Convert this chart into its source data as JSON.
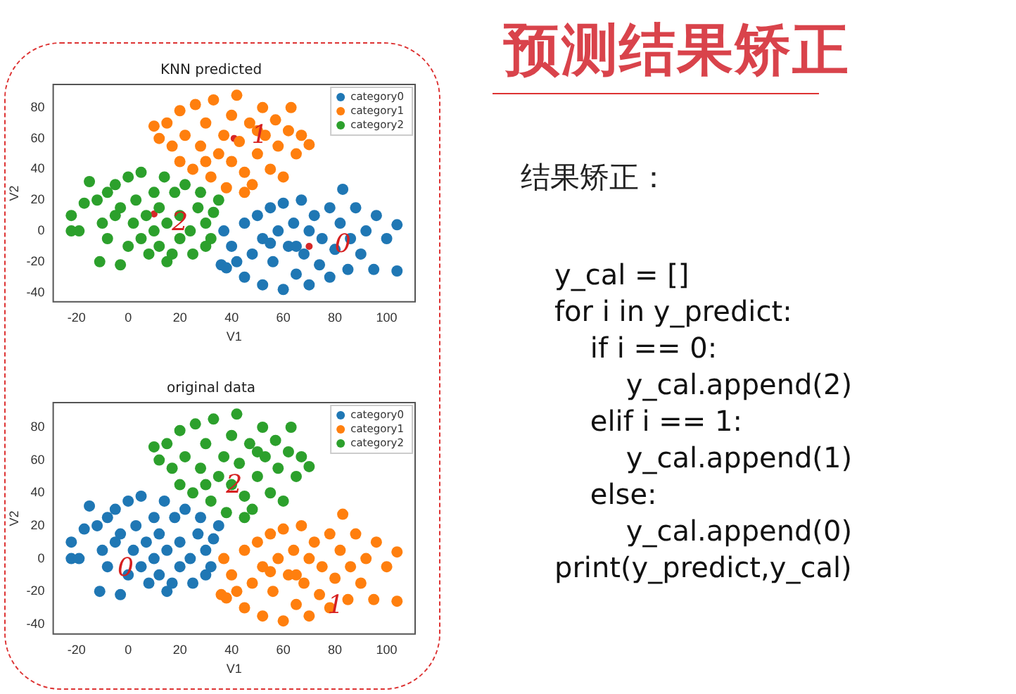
{
  "chart_data": [
    {
      "type": "scatter",
      "title": "KNN predicted",
      "xlabel": "V1",
      "ylabel": "V2",
      "xlim": [
        -29,
        111
      ],
      "ylim": [
        -46,
        95
      ],
      "xticks": [
        -20,
        0,
        20,
        40,
        60,
        80,
        100
      ],
      "yticks": [
        -40,
        -20,
        0,
        20,
        40,
        60,
        80
      ],
      "grid": false,
      "legend": "top right",
      "marker": "circle",
      "series": [
        {
          "name": "category0",
          "color": "#1f77b4",
          "x": [
            36,
            37,
            38,
            40,
            42,
            45,
            45,
            48,
            50,
            52,
            52,
            55,
            56,
            58,
            60,
            60,
            62,
            64,
            65,
            67,
            68,
            70,
            70,
            72,
            74,
            75,
            78,
            78,
            80,
            82,
            83,
            85,
            86,
            88,
            90,
            92,
            95,
            96,
            100,
            104,
            104,
            65,
            55
          ],
          "values": [
            -22,
            0,
            -24,
            -10,
            -20,
            5,
            -30,
            -15,
            10,
            -5,
            -35,
            15,
            -20,
            0,
            -38,
            18,
            -10,
            5,
            -28,
            20,
            -15,
            -35,
            0,
            10,
            -22,
            -5,
            15,
            -30,
            -12,
            5,
            27,
            -25,
            -5,
            15,
            -15,
            0,
            -25,
            10,
            -5,
            4,
            -26,
            -10,
            -8
          ]
        },
        {
          "name": "category1",
          "color": "#ff7f0e",
          "x": [
            10,
            12,
            15,
            17,
            20,
            20,
            22,
            25,
            26,
            28,
            30,
            32,
            33,
            35,
            37,
            38,
            40,
            40,
            42,
            43,
            45,
            47,
            48,
            50,
            52,
            53,
            55,
            57,
            58,
            60,
            62,
            63,
            65,
            67,
            70,
            45,
            30,
            50
          ],
          "values": [
            68,
            60,
            70,
            55,
            78,
            45,
            62,
            40,
            82,
            55,
            70,
            35,
            85,
            50,
            62,
            28,
            75,
            45,
            88,
            58,
            38,
            70,
            30,
            50,
            80,
            62,
            40,
            72,
            55,
            35,
            65,
            80,
            50,
            62,
            56,
            25,
            45,
            65
          ]
        },
        {
          "name": "category2",
          "color": "#2ca02c",
          "x": [
            -22,
            -22,
            -19,
            -17,
            -15,
            -12,
            -11,
            -10,
            -8,
            -8,
            -5,
            -3,
            -3,
            0,
            0,
            2,
            3,
            5,
            5,
            7,
            8,
            10,
            10,
            12,
            12,
            14,
            15,
            17,
            18,
            20,
            20,
            22,
            24,
            25,
            27,
            28,
            30,
            32,
            33,
            35,
            30,
            -5,
            15
          ],
          "values": [
            10,
            0,
            0,
            18,
            32,
            20,
            -20,
            5,
            -5,
            25,
            30,
            -22,
            15,
            -10,
            35,
            5,
            20,
            -5,
            38,
            10,
            -15,
            25,
            0,
            -10,
            15,
            35,
            5,
            -15,
            25,
            -5,
            10,
            30,
            0,
            -15,
            15,
            25,
            5,
            -5,
            12,
            20,
            -10,
            10,
            -20
          ]
        },
        {
          "color": "#d62728",
          "x": [
            41,
            10,
            70
          ],
          "values": [
            60,
            11,
            -10
          ]
        }
      ],
      "annotations": [
        "1",
        "2",
        "0"
      ]
    },
    {
      "type": "scatter",
      "title": "original data",
      "xlabel": "V1",
      "ylabel": "V2",
      "xlim": [
        -29,
        111
      ],
      "ylim": [
        -46,
        95
      ],
      "xticks": [
        -20,
        0,
        20,
        40,
        60,
        80,
        100
      ],
      "yticks": [
        -40,
        -20,
        0,
        20,
        40,
        60,
        80
      ],
      "grid": false,
      "legend": "top right",
      "marker": "circle",
      "series": [
        {
          "name": "category0",
          "color": "#1f77b4",
          "x": [
            -22,
            -22,
            -19,
            -17,
            -15,
            -12,
            -11,
            -10,
            -8,
            -8,
            -5,
            -3,
            -3,
            0,
            0,
            2,
            3,
            5,
            5,
            7,
            8,
            10,
            10,
            12,
            12,
            14,
            15,
            17,
            18,
            20,
            20,
            22,
            24,
            25,
            27,
            28,
            30,
            32,
            33,
            35,
            30,
            -5,
            15
          ],
          "values": [
            10,
            0,
            0,
            18,
            32,
            20,
            -20,
            5,
            -5,
            25,
            30,
            -22,
            15,
            -10,
            35,
            5,
            20,
            -5,
            38,
            10,
            -15,
            25,
            0,
            -10,
            15,
            35,
            5,
            -15,
            25,
            -5,
            10,
            30,
            0,
            -15,
            15,
            25,
            5,
            -5,
            12,
            20,
            -10,
            10,
            -20
          ]
        },
        {
          "name": "category1",
          "color": "#ff7f0e",
          "x": [
            36,
            37,
            38,
            40,
            42,
            45,
            45,
            48,
            50,
            52,
            52,
            55,
            56,
            58,
            60,
            60,
            62,
            64,
            65,
            67,
            68,
            70,
            70,
            72,
            74,
            75,
            78,
            78,
            80,
            82,
            83,
            85,
            86,
            88,
            90,
            92,
            95,
            96,
            100,
            104,
            104,
            65,
            55
          ],
          "values": [
            -22,
            0,
            -24,
            -10,
            -20,
            5,
            -30,
            -15,
            10,
            -5,
            -35,
            15,
            -20,
            0,
            -38,
            18,
            -10,
            5,
            -28,
            20,
            -15,
            -35,
            0,
            10,
            -22,
            -5,
            15,
            -30,
            -12,
            5,
            27,
            -25,
            -5,
            15,
            -15,
            0,
            -25,
            10,
            -5,
            4,
            -26,
            -10,
            -8
          ]
        },
        {
          "name": "category2",
          "color": "#2ca02c",
          "x": [
            10,
            12,
            15,
            17,
            20,
            20,
            22,
            25,
            26,
            28,
            30,
            32,
            33,
            35,
            37,
            38,
            40,
            40,
            42,
            43,
            45,
            47,
            48,
            50,
            52,
            53,
            55,
            57,
            58,
            60,
            62,
            63,
            65,
            67,
            70,
            45,
            30,
            50
          ],
          "values": [
            68,
            60,
            70,
            55,
            78,
            45,
            62,
            40,
            82,
            55,
            70,
            35,
            85,
            50,
            62,
            28,
            75,
            45,
            88,
            58,
            38,
            70,
            30,
            50,
            80,
            62,
            40,
            72,
            55,
            35,
            65,
            80,
            50,
            62,
            56,
            25,
            45,
            65
          ]
        }
      ],
      "annotations": [
        "2",
        "0",
        "1"
      ]
    },
    {
      "type": "other",
      "title": "预测结果矫正",
      "subtitle": "结果矫正：",
      "annotations": [
        "y_cal = []",
        "for i in y_predict:",
        "    if i == 0:",
        "        y_cal.append(2)",
        "    elif i == 1:",
        "        y_cal.append(1)",
        "    else:",
        "        y_cal.append(0)",
        "print(y_predict,y_cal)"
      ]
    }
  ]
}
